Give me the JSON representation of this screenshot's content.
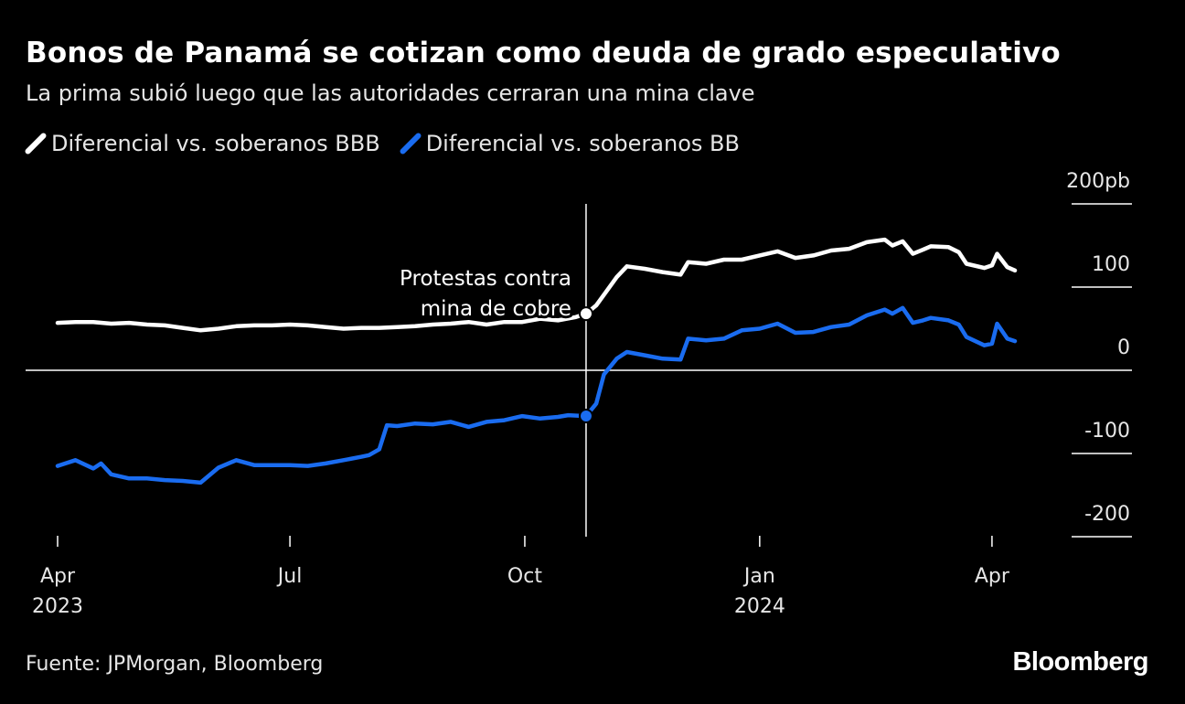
{
  "title": "Bonos de Panamá se cotizan como deuda de grado especulativo",
  "subtitle": "La prima subió luego que las autoridades cerraran una mina clave",
  "legend": [
    {
      "label": "Diferencial vs. soberanos BBB",
      "color": "#ffffff"
    },
    {
      "label": "Diferencial vs. soberanos BB",
      "color": "#1a6cf0"
    }
  ],
  "source": "Fuente: JPMorgan, Bloomberg",
  "brand": "Bloomberg",
  "chart_data": {
    "type": "line",
    "title": "Bonos de Panamá se cotizan como deuda de grado especulativo",
    "unit": "pb",
    "ylim": [
      -200,
      200
    ],
    "y_ticks": [
      {
        "value": 200,
        "label": "200pb"
      },
      {
        "value": 100,
        "label": "100"
      },
      {
        "value": 0,
        "label": "0"
      },
      {
        "value": -100,
        "label": "-100"
      },
      {
        "value": -200,
        "label": "-200"
      }
    ],
    "x_range": [
      "2023-04-01",
      "2024-04-15"
    ],
    "x_ticks": [
      {
        "date": "2023-04-01",
        "label": "Apr",
        "year": "2023"
      },
      {
        "date": "2023-07-01",
        "label": "Jul",
        "year": ""
      },
      {
        "date": "2023-10-01",
        "label": "Oct",
        "year": ""
      },
      {
        "date": "2024-01-01",
        "label": "Jan",
        "year": "2024"
      },
      {
        "date": "2024-04-01",
        "label": "Apr",
        "year": ""
      }
    ],
    "annotation": {
      "date": "2023-10-25",
      "lines": [
        "Protestas contra",
        "mina de cobre"
      ]
    },
    "series": [
      {
        "name": "Diferencial vs. soberanos BBB",
        "color": "#ffffff",
        "points": [
          [
            "2023-04-01",
            57
          ],
          [
            "2023-04-08",
            58
          ],
          [
            "2023-04-15",
            58
          ],
          [
            "2023-04-22",
            56
          ],
          [
            "2023-04-29",
            57
          ],
          [
            "2023-05-06",
            55
          ],
          [
            "2023-05-13",
            54
          ],
          [
            "2023-05-20",
            51
          ],
          [
            "2023-05-27",
            48
          ],
          [
            "2023-06-03",
            50
          ],
          [
            "2023-06-10",
            53
          ],
          [
            "2023-06-17",
            54
          ],
          [
            "2023-06-24",
            54
          ],
          [
            "2023-07-01",
            55
          ],
          [
            "2023-07-08",
            54
          ],
          [
            "2023-07-15",
            52
          ],
          [
            "2023-07-22",
            50
          ],
          [
            "2023-07-29",
            51
          ],
          [
            "2023-08-05",
            51
          ],
          [
            "2023-08-12",
            52
          ],
          [
            "2023-08-19",
            53
          ],
          [
            "2023-08-26",
            55
          ],
          [
            "2023-09-02",
            56
          ],
          [
            "2023-09-09",
            58
          ],
          [
            "2023-09-16",
            55
          ],
          [
            "2023-09-23",
            58
          ],
          [
            "2023-09-30",
            58
          ],
          [
            "2023-10-07",
            62
          ],
          [
            "2023-10-14",
            60
          ],
          [
            "2023-10-21",
            64
          ],
          [
            "2023-10-25",
            68
          ],
          [
            "2023-10-29",
            78
          ],
          [
            "2023-11-02",
            95
          ],
          [
            "2023-11-06",
            112
          ],
          [
            "2023-11-10",
            125
          ],
          [
            "2023-11-17",
            122
          ],
          [
            "2023-11-24",
            118
          ],
          [
            "2023-12-01",
            115
          ],
          [
            "2023-12-04",
            130
          ],
          [
            "2023-12-11",
            128
          ],
          [
            "2023-12-18",
            133
          ],
          [
            "2023-12-25",
            133
          ],
          [
            "2024-01-01",
            138
          ],
          [
            "2024-01-08",
            143
          ],
          [
            "2024-01-15",
            135
          ],
          [
            "2024-01-22",
            138
          ],
          [
            "2024-01-29",
            144
          ],
          [
            "2024-02-05",
            146
          ],
          [
            "2024-02-12",
            154
          ],
          [
            "2024-02-19",
            157
          ],
          [
            "2024-02-22",
            150
          ],
          [
            "2024-02-26",
            155
          ],
          [
            "2024-03-01",
            140
          ],
          [
            "2024-03-05",
            145
          ],
          [
            "2024-03-08",
            149
          ],
          [
            "2024-03-15",
            148
          ],
          [
            "2024-03-19",
            142
          ],
          [
            "2024-03-22",
            128
          ],
          [
            "2024-03-29",
            123
          ],
          [
            "2024-04-01",
            126
          ],
          [
            "2024-04-03",
            140
          ],
          [
            "2024-04-07",
            124
          ],
          [
            "2024-04-10",
            120
          ]
        ]
      },
      {
        "name": "Diferencial vs. soberanos BB",
        "color": "#1a6cf0",
        "points": [
          [
            "2023-04-01",
            -115
          ],
          [
            "2023-04-08",
            -108
          ],
          [
            "2023-04-15",
            -118
          ],
          [
            "2023-04-18",
            -112
          ],
          [
            "2023-04-22",
            -125
          ],
          [
            "2023-04-29",
            -130
          ],
          [
            "2023-05-06",
            -130
          ],
          [
            "2023-05-13",
            -132
          ],
          [
            "2023-05-20",
            -133
          ],
          [
            "2023-05-27",
            -135
          ],
          [
            "2023-06-03",
            -117
          ],
          [
            "2023-06-10",
            -108
          ],
          [
            "2023-06-17",
            -114
          ],
          [
            "2023-06-24",
            -114
          ],
          [
            "2023-07-01",
            -114
          ],
          [
            "2023-07-08",
            -115
          ],
          [
            "2023-07-15",
            -112
          ],
          [
            "2023-07-22",
            -108
          ],
          [
            "2023-07-29",
            -104
          ],
          [
            "2023-08-01",
            -102
          ],
          [
            "2023-08-05",
            -95
          ],
          [
            "2023-08-08",
            -66
          ],
          [
            "2023-08-12",
            -67
          ],
          [
            "2023-08-19",
            -64
          ],
          [
            "2023-08-26",
            -65
          ],
          [
            "2023-09-02",
            -62
          ],
          [
            "2023-09-09",
            -68
          ],
          [
            "2023-09-16",
            -62
          ],
          [
            "2023-09-23",
            -60
          ],
          [
            "2023-09-30",
            -55
          ],
          [
            "2023-10-07",
            -58
          ],
          [
            "2023-10-14",
            -56
          ],
          [
            "2023-10-18",
            -54
          ],
          [
            "2023-10-25",
            -55
          ],
          [
            "2023-10-29",
            -40
          ],
          [
            "2023-11-01",
            -5
          ],
          [
            "2023-11-06",
            14
          ],
          [
            "2023-11-10",
            22
          ],
          [
            "2023-11-17",
            18
          ],
          [
            "2023-11-24",
            14
          ],
          [
            "2023-12-01",
            13
          ],
          [
            "2023-12-04",
            38
          ],
          [
            "2023-12-11",
            36
          ],
          [
            "2023-12-18",
            38
          ],
          [
            "2023-12-25",
            48
          ],
          [
            "2024-01-01",
            50
          ],
          [
            "2024-01-08",
            56
          ],
          [
            "2024-01-15",
            45
          ],
          [
            "2024-01-22",
            46
          ],
          [
            "2024-01-29",
            52
          ],
          [
            "2024-02-05",
            55
          ],
          [
            "2024-02-12",
            66
          ],
          [
            "2024-02-19",
            73
          ],
          [
            "2024-02-22",
            68
          ],
          [
            "2024-02-26",
            75
          ],
          [
            "2024-03-01",
            57
          ],
          [
            "2024-03-05",
            60
          ],
          [
            "2024-03-08",
            63
          ],
          [
            "2024-03-15",
            60
          ],
          [
            "2024-03-19",
            55
          ],
          [
            "2024-03-22",
            40
          ],
          [
            "2024-03-29",
            30
          ],
          [
            "2024-04-01",
            32
          ],
          [
            "2024-04-03",
            56
          ],
          [
            "2024-04-07",
            38
          ],
          [
            "2024-04-10",
            35
          ]
        ]
      }
    ]
  }
}
